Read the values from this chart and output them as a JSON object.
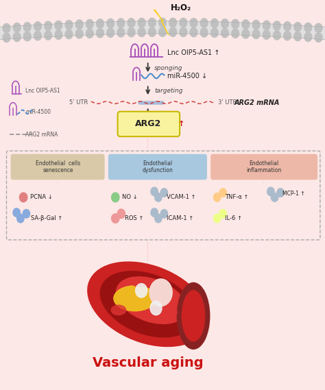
{
  "bg_color": "#fce8e6",
  "title": "Vascular aging",
  "title_color": "#cc1111",
  "membrane_color": "#e8e8e8",
  "membrane_circle_color": "#c8c8c8",
  "h2o2_text": "H₂O₂",
  "lnc_label": "Lnc OIP5-AS1",
  "mir_label": "miR-4500",
  "arg2mrna_label": "ARG2 mRNA",
  "arg2_text": "ARG2",
  "sponging_text": "sponging",
  "targeting_text": "targeting",
  "utr5_text": "5ʹ UTR",
  "utr3_text": "3ʹ UTR",
  "up_arrow": "↑",
  "down_arrow": "↓",
  "lnc_color": "#aa55bb",
  "mir_color": "#4488cc",
  "arg2mrna_color": "#999999",
  "arg2_box_color": "#f9f3a0",
  "arg2_border_color": "#c8b800",
  "box1_title": "Endothelial  cells\nsenescence",
  "box2_title": "Endothelial\ndysfunction",
  "box3_title": "Endothelial\ninflammation",
  "box1_color": "#d9c9a8",
  "box2_color": "#a8c8e0",
  "box3_color": "#edb8a8",
  "legend_lnc": "Lnc OIP5-AS1",
  "legend_mir": "miR-4500",
  "legend_arg2": "ARG2 mRNA",
  "pcna_dot_color": "#e08080",
  "sabgal_dot_color": "#88aadd",
  "no_dot_color": "#88cc88",
  "ros_dot_color": "#ee9999",
  "vcam_dot_color": "#aabbcc",
  "icam_dot_color": "#aabbcc",
  "tnfa_dot_color": "#ffcc88",
  "il6_dot_color": "#eeff88",
  "mcp_dot_color": "#aabbcc",
  "pink_arrow": "#f4a0b0",
  "tan_arrow": "#c8a870",
  "blue_arrow": "#88b8d8",
  "dark_arrow": "#333333"
}
